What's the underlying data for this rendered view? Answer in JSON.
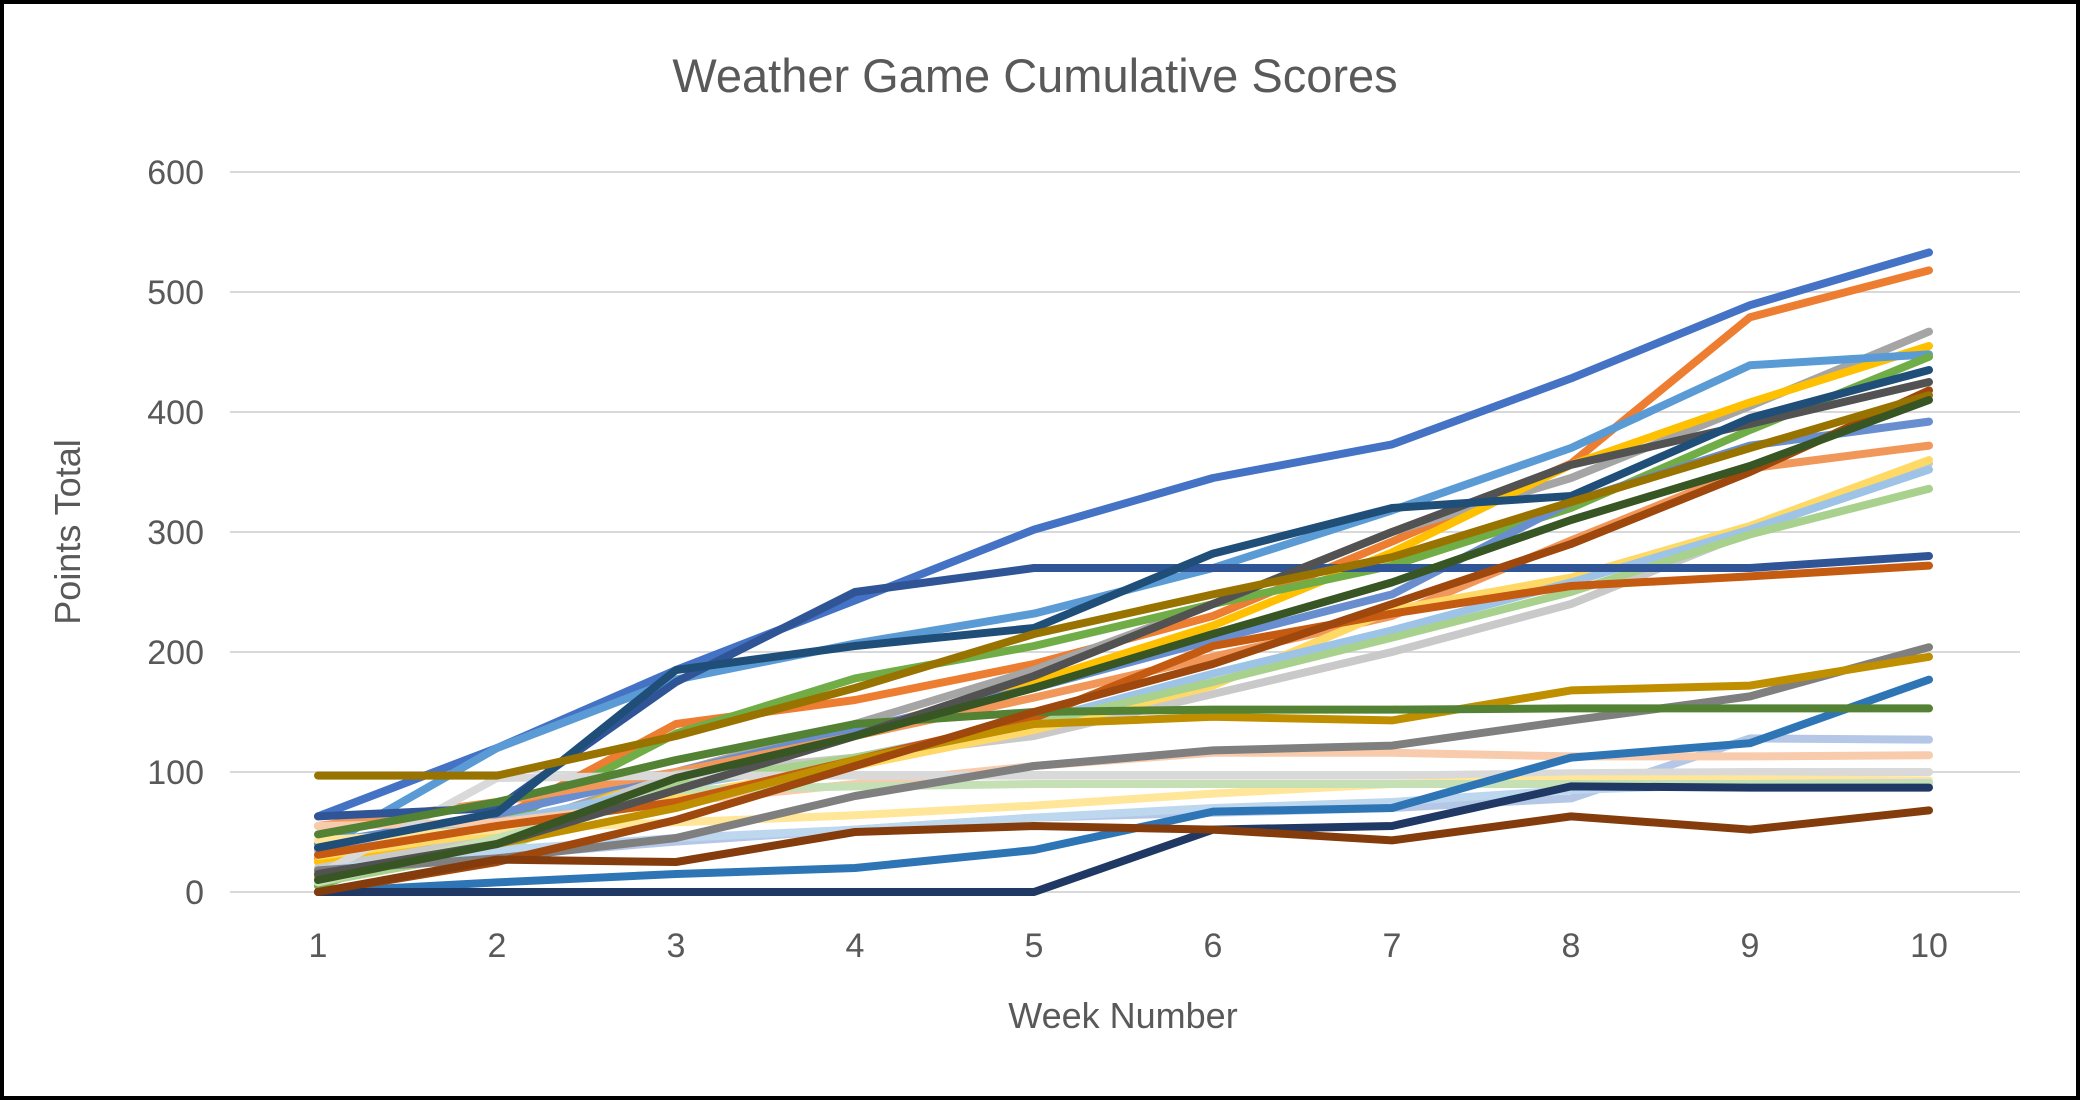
{
  "window": {
    "background_color": "#FFFFFF",
    "border_color": "#000000"
  },
  "chart_data": {
    "type": "line",
    "title": "Weather Game Cumulative Scores",
    "xlabel": "Week Number",
    "ylabel": "Points Total",
    "x": [
      1,
      2,
      3,
      4,
      5,
      6,
      7,
      8,
      9,
      10
    ],
    "x_tick_labels": [
      "1",
      "2",
      "3",
      "4",
      "5",
      "6",
      "7",
      "8",
      "9",
      "10"
    ],
    "y_ticks": [
      0,
      100,
      200,
      300,
      400,
      500,
      600
    ],
    "ylim": [
      0,
      600
    ],
    "grid": "horizontal",
    "legend_position": "none",
    "text_color": "#595959",
    "gridline_color": "#D9D9D9",
    "series": [
      {
        "color": "#4472C4",
        "values": [
          63,
          120,
          185,
          243,
          302,
          345,
          373,
          428,
          489,
          533
        ]
      },
      {
        "color": "#ED7D31",
        "values": [
          28,
          60,
          140,
          160,
          190,
          230,
          292,
          357,
          479,
          518
        ]
      },
      {
        "color": "#A5A5A5",
        "values": [
          20,
          50,
          100,
          140,
          185,
          240,
          300,
          345,
          405,
          467
        ]
      },
      {
        "color": "#FFC000",
        "values": [
          25,
          45,
          100,
          133,
          175,
          222,
          283,
          356,
          408,
          455
        ]
      },
      {
        "color": "#5B9BD5",
        "values": [
          35,
          120,
          177,
          207,
          232,
          270,
          318,
          370,
          439,
          448
        ]
      },
      {
        "color": "#70AD47",
        "values": [
          5,
          55,
          132,
          178,
          205,
          240,
          272,
          320,
          385,
          446
        ]
      },
      {
        "color": "#698ED0",
        "values": [
          40,
          65,
          100,
          135,
          170,
          210,
          248,
          325,
          372,
          392
        ]
      },
      {
        "color": "#F1975A",
        "values": [
          55,
          75,
          100,
          130,
          162,
          196,
          230,
          293,
          353,
          372
        ]
      },
      {
        "color": "#C9C9C9",
        "values": [
          20,
          45,
          98,
          112,
          130,
          165,
          200,
          240,
          300,
          357
        ]
      },
      {
        "color": "#FFD966",
        "values": [
          30,
          50,
          80,
          105,
          135,
          172,
          235,
          262,
          305,
          360
        ]
      },
      {
        "color": "#9DC3E6",
        "values": [
          35,
          58,
          88,
          112,
          142,
          182,
          218,
          258,
          302,
          352
        ]
      },
      {
        "color": "#A9D18E",
        "values": [
          8,
          35,
          90,
          112,
          140,
          175,
          212,
          250,
          298,
          336
        ]
      },
      {
        "color": "#B4C7E7",
        "values": [
          18,
          30,
          42,
          52,
          62,
          66,
          70,
          78,
          128,
          127
        ]
      },
      {
        "color": "#F8CBAD",
        "values": [
          55,
          58,
          75,
          90,
          105,
          116,
          116,
          113,
          113,
          114
        ]
      },
      {
        "color": "#D9D9D9",
        "values": [
          14,
          95,
          97,
          97,
          97,
          97,
          97,
          99,
          100,
          100
        ]
      },
      {
        "color": "#FFE699",
        "values": [
          43,
          52,
          58,
          64,
          72,
          82,
          90,
          94,
          94,
          93
        ]
      },
      {
        "color": "#BDD7EE",
        "values": [
          18,
          35,
          45,
          52,
          62,
          70,
          75,
          85,
          90,
          91
        ]
      },
      {
        "color": "#C5E0B4",
        "values": [
          8,
          45,
          85,
          88,
          90,
          90,
          90,
          90,
          90,
          90
        ]
      },
      {
        "color": "#2F5597",
        "values": [
          63,
          70,
          175,
          250,
          270,
          270,
          270,
          270,
          270,
          280
        ]
      },
      {
        "color": "#C55A11",
        "values": [
          31,
          55,
          75,
          110,
          145,
          205,
          232,
          255,
          263,
          272
        ]
      },
      {
        "color": "#7F7F7F",
        "values": [
          18,
          28,
          45,
          80,
          105,
          118,
          122,
          143,
          163,
          204
        ]
      },
      {
        "color": "#BF8F00",
        "values": [
          13,
          40,
          70,
          110,
          140,
          146,
          143,
          168,
          172,
          196
        ]
      },
      {
        "color": "#2E75B6",
        "values": [
          0,
          8,
          15,
          20,
          35,
          67,
          70,
          112,
          124,
          177
        ]
      },
      {
        "color": "#548235",
        "values": [
          48,
          75,
          110,
          140,
          150,
          152,
          152,
          153,
          153,
          153
        ]
      },
      {
        "color": "#525252",
        "values": [
          15,
          40,
          85,
          130,
          180,
          240,
          300,
          356,
          390,
          425
        ]
      },
      {
        "color": "#1F4E79",
        "values": [
          37,
          66,
          185,
          205,
          220,
          282,
          320,
          330,
          395,
          435
        ]
      },
      {
        "color": "#9E480E",
        "values": [
          0,
          25,
          60,
          105,
          150,
          190,
          240,
          290,
          350,
          418
        ]
      },
      {
        "color": "#997300",
        "values": [
          97,
          97,
          130,
          170,
          215,
          248,
          279,
          325,
          370,
          414
        ]
      },
      {
        "color": "#375623",
        "values": [
          10,
          40,
          95,
          130,
          170,
          215,
          258,
          310,
          355,
          410
        ]
      },
      {
        "color": "#1F3864",
        "values": [
          0,
          0,
          0,
          0,
          0,
          52,
          55,
          88,
          87,
          87
        ]
      },
      {
        "color": "#843C0C",
        "values": [
          0,
          27,
          25,
          50,
          55,
          52,
          43,
          63,
          52,
          68
        ]
      }
    ]
  }
}
